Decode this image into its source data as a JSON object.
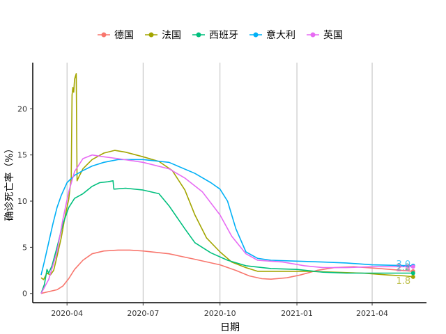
{
  "chart_data": {
    "type": "line",
    "title": "",
    "xlabel": "日期",
    "ylabel": "确诊死亡率（%）",
    "x_ticks": [
      "2020-04",
      "2020-07",
      "2020-10",
      "2021-01",
      "2021-04"
    ],
    "y_ticks": [
      0,
      5,
      10,
      15,
      20
    ],
    "xlim": [
      "2020-02-20",
      "2021-06-05"
    ],
    "ylim": [
      -1,
      25
    ],
    "grid": "vertical-major",
    "legend_position": "top",
    "series": [
      {
        "name": "德国",
        "color": "#F8766D",
        "end_label": "2.4",
        "points": [
          [
            "2020-03-01",
            0.0
          ],
          [
            "2020-03-10",
            0.2
          ],
          [
            "2020-03-20",
            0.4
          ],
          [
            "2020-03-27",
            0.8
          ],
          [
            "2020-04-03",
            1.6
          ],
          [
            "2020-04-10",
            2.6
          ],
          [
            "2020-04-20",
            3.6
          ],
          [
            "2020-05-01",
            4.3
          ],
          [
            "2020-05-15",
            4.6
          ],
          [
            "2020-06-01",
            4.7
          ],
          [
            "2020-06-15",
            4.7
          ],
          [
            "2020-07-01",
            4.6
          ],
          [
            "2020-08-01",
            4.3
          ],
          [
            "2020-09-01",
            3.7
          ],
          [
            "2020-10-01",
            3.1
          ],
          [
            "2020-10-20",
            2.5
          ],
          [
            "2020-11-05",
            1.9
          ],
          [
            "2020-11-20",
            1.6
          ],
          [
            "2020-12-01",
            1.55
          ],
          [
            "2020-12-20",
            1.7
          ],
          [
            "2021-01-05",
            2.0
          ],
          [
            "2021-01-25",
            2.5
          ],
          [
            "2021-02-15",
            2.8
          ],
          [
            "2021-03-10",
            2.9
          ],
          [
            "2021-04-10",
            2.7
          ],
          [
            "2021-05-20",
            2.4
          ]
        ]
      },
      {
        "name": "法国",
        "color": "#A3A500",
        "end_label": "1.8",
        "points": [
          [
            "2020-03-01",
            1.7
          ],
          [
            "2020-03-04",
            1.5
          ],
          [
            "2020-03-08",
            2.2
          ],
          [
            "2020-03-12",
            2.0
          ],
          [
            "2020-03-16",
            2.5
          ],
          [
            "2020-03-20",
            4.0
          ],
          [
            "2020-03-25",
            6.0
          ],
          [
            "2020-03-30",
            8.5
          ],
          [
            "2020-04-03",
            10.2
          ],
          [
            "2020-04-06",
            12.5
          ],
          [
            "2020-04-07",
            21.5
          ],
          [
            "2020-04-08",
            22.3
          ],
          [
            "2020-04-09",
            21.8
          ],
          [
            "2020-04-10",
            23.2
          ],
          [
            "2020-04-12",
            23.8
          ],
          [
            "2020-04-13",
            12.2
          ],
          [
            "2020-04-15",
            12.6
          ],
          [
            "2020-04-20",
            13.5
          ],
          [
            "2020-05-01",
            14.5
          ],
          [
            "2020-05-15",
            15.2
          ],
          [
            "2020-05-28",
            15.5
          ],
          [
            "2020-06-10",
            15.3
          ],
          [
            "2020-07-01",
            14.8
          ],
          [
            "2020-07-20",
            14.3
          ],
          [
            "2020-08-05",
            13.3
          ],
          [
            "2020-08-20",
            11.2
          ],
          [
            "2020-09-01",
            8.5
          ],
          [
            "2020-09-15",
            6.0
          ],
          [
            "2020-10-01",
            4.5
          ],
          [
            "2020-10-15",
            3.4
          ],
          [
            "2020-11-01",
            2.8
          ],
          [
            "2020-11-15",
            2.4
          ],
          [
            "2020-12-15",
            2.4
          ],
          [
            "2021-01-15",
            2.4
          ],
          [
            "2021-02-15",
            2.3
          ],
          [
            "2021-03-20",
            2.2
          ],
          [
            "2021-04-20",
            2.0
          ],
          [
            "2021-05-10",
            1.9
          ],
          [
            "2021-05-20",
            1.8
          ]
        ]
      },
      {
        "name": "西班牙",
        "color": "#00BF7D",
        "end_label": "2.2",
        "points": [
          [
            "2020-03-01",
            0.0
          ],
          [
            "2020-03-05",
            1.0
          ],
          [
            "2020-03-08",
            2.6
          ],
          [
            "2020-03-10",
            2.2
          ],
          [
            "2020-03-14",
            3.0
          ],
          [
            "2020-03-20",
            5.0
          ],
          [
            "2020-03-27",
            7.5
          ],
          [
            "2020-04-03",
            9.3
          ],
          [
            "2020-04-10",
            10.3
          ],
          [
            "2020-04-20",
            10.8
          ],
          [
            "2020-05-01",
            11.6
          ],
          [
            "2020-05-10",
            12.0
          ],
          [
            "2020-05-20",
            12.1
          ],
          [
            "2020-05-26",
            12.2
          ],
          [
            "2020-05-27",
            11.3
          ],
          [
            "2020-06-10",
            11.4
          ],
          [
            "2020-07-01",
            11.2
          ],
          [
            "2020-07-20",
            10.8
          ],
          [
            "2020-08-01",
            9.5
          ],
          [
            "2020-08-20",
            7.0
          ],
          [
            "2020-09-01",
            5.5
          ],
          [
            "2020-09-20",
            4.4
          ],
          [
            "2020-10-10",
            3.6
          ],
          [
            "2020-11-01",
            3.0
          ],
          [
            "2020-12-01",
            2.7
          ],
          [
            "2021-01-01",
            2.6
          ],
          [
            "2021-02-01",
            2.3
          ],
          [
            "2021-03-01",
            2.2
          ],
          [
            "2021-04-15",
            2.2
          ],
          [
            "2021-05-20",
            2.2
          ]
        ]
      },
      {
        "name": "意大利",
        "color": "#00B0F6",
        "end_label": "3.0",
        "points": [
          [
            "2020-03-01",
            2.0
          ],
          [
            "2020-03-05",
            3.5
          ],
          [
            "2020-03-10",
            5.5
          ],
          [
            "2020-03-15",
            7.5
          ],
          [
            "2020-03-20",
            9.3
          ],
          [
            "2020-03-25",
            10.6
          ],
          [
            "2020-04-01",
            12.0
          ],
          [
            "2020-04-10",
            12.8
          ],
          [
            "2020-04-20",
            13.3
          ],
          [
            "2020-05-01",
            13.8
          ],
          [
            "2020-05-15",
            14.2
          ],
          [
            "2020-06-01",
            14.5
          ],
          [
            "2020-07-01",
            14.5
          ],
          [
            "2020-08-01",
            14.2
          ],
          [
            "2020-09-01",
            13.0
          ],
          [
            "2020-09-20",
            12.0
          ],
          [
            "2020-10-01",
            11.3
          ],
          [
            "2020-10-10",
            10.0
          ],
          [
            "2020-10-20",
            7.0
          ],
          [
            "2020-11-01",
            4.5
          ],
          [
            "2020-11-15",
            3.8
          ],
          [
            "2020-12-01",
            3.6
          ],
          [
            "2021-01-01",
            3.5
          ],
          [
            "2021-02-01",
            3.4
          ],
          [
            "2021-03-01",
            3.3
          ],
          [
            "2021-04-01",
            3.1
          ],
          [
            "2021-05-20",
            3.0
          ]
        ]
      },
      {
        "name": "英国",
        "color": "#E76BF3",
        "end_label": "2.9",
        "points": [
          [
            "2020-03-01",
            0.0
          ],
          [
            "2020-03-10",
            1.5
          ],
          [
            "2020-03-20",
            4.5
          ],
          [
            "2020-03-27",
            8.0
          ],
          [
            "2020-04-03",
            11.0
          ],
          [
            "2020-04-10",
            13.2
          ],
          [
            "2020-04-20",
            14.6
          ],
          [
            "2020-05-01",
            15.0
          ],
          [
            "2020-05-15",
            14.8
          ],
          [
            "2020-06-01",
            14.6
          ],
          [
            "2020-07-01",
            14.2
          ],
          [
            "2020-08-01",
            13.5
          ],
          [
            "2020-08-20",
            12.5
          ],
          [
            "2020-09-10",
            11.0
          ],
          [
            "2020-10-01",
            8.5
          ],
          [
            "2020-10-15",
            6.2
          ],
          [
            "2020-11-01",
            4.3
          ],
          [
            "2020-11-15",
            3.6
          ],
          [
            "2020-12-15",
            3.4
          ],
          [
            "2021-01-10",
            3.0
          ],
          [
            "2021-02-01",
            2.8
          ],
          [
            "2021-03-01",
            2.8
          ],
          [
            "2021-04-01",
            2.9
          ],
          [
            "2021-05-20",
            2.9
          ]
        ]
      }
    ]
  }
}
